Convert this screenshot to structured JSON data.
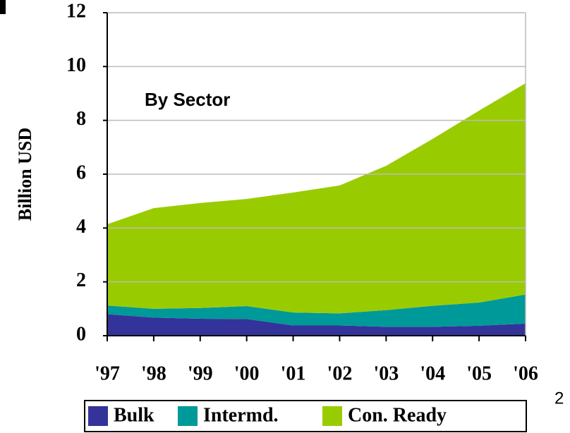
{
  "chart_data": {
    "type": "stacked_area",
    "ylabel": "Billion USD",
    "annotations": [
      "By Sector",
      "2"
    ],
    "categories": [
      "'97",
      "'98",
      "'99",
      "'00",
      "'01",
      "'02",
      "'03",
      "'04",
      "'05",
      "'06"
    ],
    "series": [
      {
        "name": "Bulk",
        "color": "#333399",
        "values": [
          0.8,
          0.67,
          0.63,
          0.62,
          0.38,
          0.38,
          0.33,
          0.33,
          0.37,
          0.45
        ]
      },
      {
        "name": "Intermd.",
        "color": "#009999",
        "values": [
          0.32,
          0.33,
          0.4,
          0.48,
          0.48,
          0.45,
          0.62,
          0.78,
          0.86,
          1.08
        ]
      },
      {
        "name": "Con. Ready",
        "color": "#99cc00",
        "values": [
          3.02,
          3.74,
          3.9,
          3.98,
          4.46,
          4.75,
          5.36,
          6.2,
          7.13,
          7.85
        ]
      }
    ],
    "ylim": [
      0,
      12
    ],
    "yticks": [
      0,
      2,
      4,
      6,
      8,
      10,
      12
    ],
    "grid": true,
    "legend": "bottom"
  }
}
